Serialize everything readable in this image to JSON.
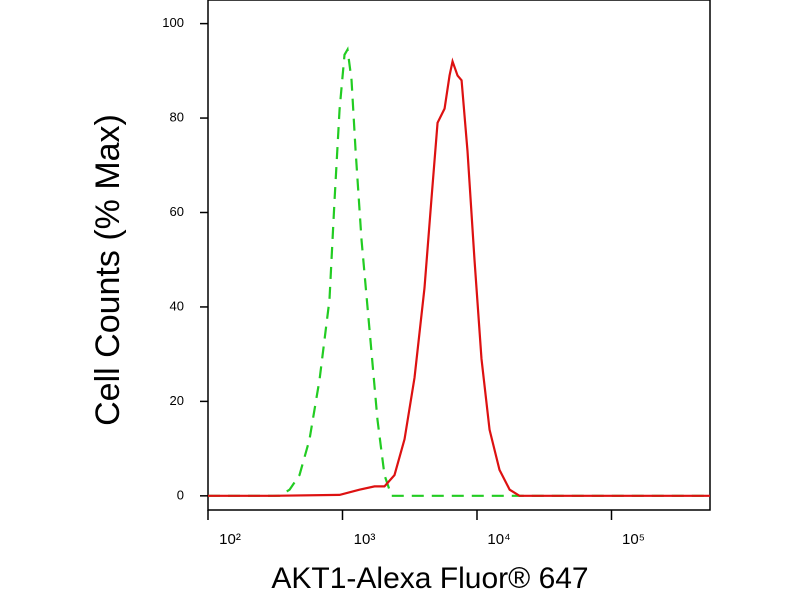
{
  "chart_data": {
    "type": "line",
    "x_scale": "log",
    "ylabel": "Cell Counts (% Max)",
    "xlabel": "AKT1-Alexa Fluor® 647",
    "xlim": [
      100,
      540000
    ],
    "ylim": [
      -3,
      105
    ],
    "xticks": [
      {
        "value": 100,
        "label": "10²"
      },
      {
        "value": 1000,
        "label": "10³"
      },
      {
        "value": 10000,
        "label": "10⁴"
      },
      {
        "value": 100000,
        "label": "10⁵"
      }
    ],
    "yticks": [
      0,
      20,
      40,
      60,
      80,
      100
    ],
    "series": [
      {
        "color": "#22cc22",
        "linestyle": "dashed",
        "x": [
          100,
          251,
          340,
          404,
          479,
          568,
          675,
          800,
          873,
          951,
          1035,
          1090,
          1167,
          1250,
          1385,
          1588,
          1820,
          2052,
          2313,
          2654,
          540000
        ],
        "values": [
          0,
          0,
          0,
          1.3,
          4.4,
          11.9,
          24.6,
          41.5,
          62.7,
          81.8,
          93.4,
          94.5,
          88.1,
          73.3,
          54.2,
          35.2,
          16.1,
          4.4,
          0,
          0,
          0
        ]
      },
      {
        "color": "#dd1111",
        "linestyle": "solid",
        "x": [
          100,
          300,
          951,
          1337,
          1730,
          2052,
          2436,
          2893,
          3431,
          4070,
          4590,
          5090,
          5740,
          6250,
          6580,
          7170,
          7680,
          8500,
          9580,
          10800,
          12400,
          14700,
          17500,
          20700,
          29200,
          540000
        ],
        "values": [
          0,
          0,
          0.2,
          1.3,
          2,
          2,
          4.4,
          12,
          25,
          44,
          63,
          79,
          82,
          89,
          92,
          89,
          88,
          73,
          50,
          29,
          14,
          5.5,
          1.3,
          0,
          0,
          0
        ]
      }
    ]
  }
}
